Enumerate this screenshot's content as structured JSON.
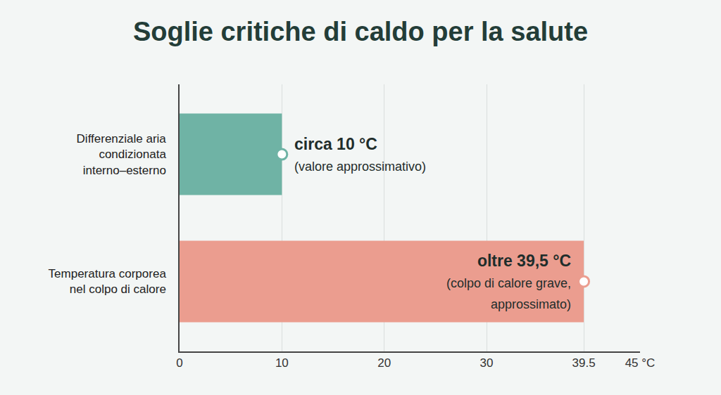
{
  "chart_data": {
    "type": "bar",
    "orientation": "horizontal",
    "title": "Soglie critiche di caldo per la salute",
    "categories": [
      "Differenziale aria condizionata interno–esterno",
      "Temperatura corporea nel colpo di calore"
    ],
    "values": [
      10,
      39.5
    ],
    "colors": [
      "#6fb3a5",
      "#eb9d8f"
    ],
    "data_labels": true,
    "value_labels": [
      "circa 10 °C",
      "oltre 39,5 °C"
    ],
    "annotations": [
      "(valore approssimativo)",
      "(colpo di calore grave, approssimato)"
    ],
    "xlim": [
      0,
      45
    ],
    "xticks": [
      0,
      10,
      20,
      30,
      39.5,
      {
        "value": 45,
        "label": "45 °C"
      }
    ],
    "grid": true
  }
}
